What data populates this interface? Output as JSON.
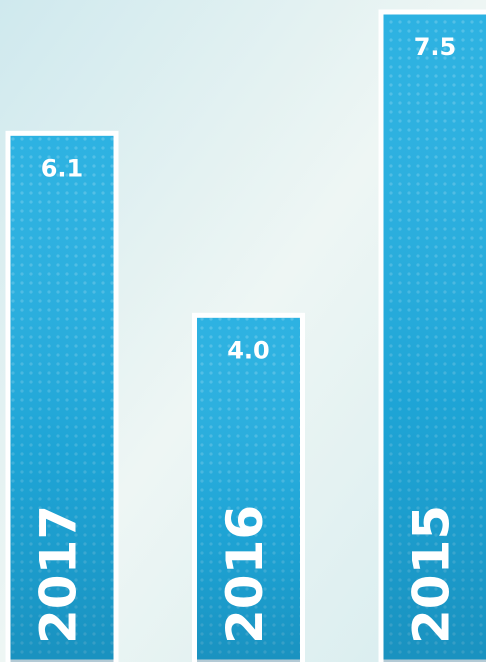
{
  "chart_data": {
    "type": "bar",
    "categories": [
      "2017",
      "2016",
      "2015"
    ],
    "values": [
      6.1,
      4.0,
      7.5
    ],
    "value_labels": [
      "6.1",
      "4.0",
      "7.5"
    ],
    "color": "#22aee0"
  }
}
